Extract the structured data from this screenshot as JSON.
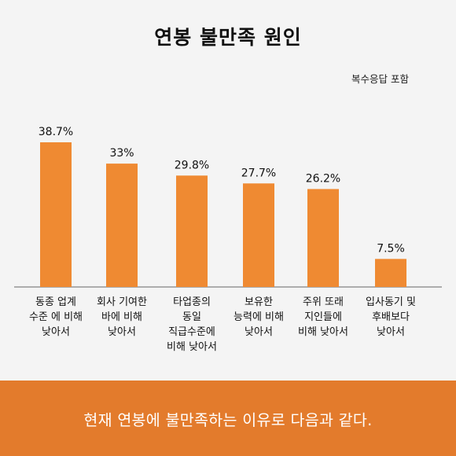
{
  "title": "연봉 불만족 원인",
  "note": "복수응답 포함",
  "footer": "현재 연봉에 불만족하는 이유로 다음과 같다.",
  "colors": {
    "bar": "#ef8a32",
    "footer": "#e37b2c",
    "background": "#f4f4f4"
  },
  "chart_data": {
    "type": "bar",
    "title": "연봉 불만족 원인",
    "categories": [
      [
        "동종 업계",
        "수준 에 비해",
        "낮아서"
      ],
      [
        "회사 기여한",
        "바에 비해",
        "낮아서"
      ],
      [
        "타업종의",
        "동일",
        "직급수준에",
        "비해 낮아서"
      ],
      [
        "보유한",
        "능력에 비해",
        "낮아서"
      ],
      [
        "주위 또래",
        "지인들에",
        "비해 낮아서"
      ],
      [
        "입사동기 및",
        "후배보다",
        "낮아서"
      ]
    ],
    "values": [
      38.7,
      33,
      29.8,
      27.7,
      26.2,
      7.5
    ],
    "data_labels": [
      "38.7%",
      "33%",
      "29.8%",
      "27.7%",
      "26.2%",
      "7.5%"
    ],
    "ylim": [
      0,
      45
    ],
    "grid": false
  }
}
